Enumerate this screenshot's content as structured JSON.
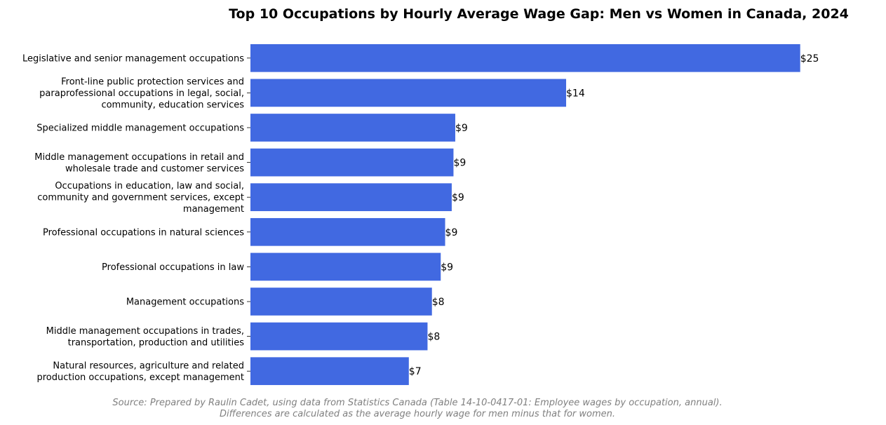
{
  "chart_data": {
    "type": "bar",
    "orientation": "horizontal",
    "title": "Top 10 Occupations by Hourly Average Wage Gap: Men vs Women in Canada, 2024",
    "xlabel": "",
    "ylabel": "",
    "xlim": [
      0,
      25
    ],
    "grid": false,
    "bar_color": "#4169E1",
    "value_prefix": "$",
    "categories": [
      [
        "Legislative and senior management occupations"
      ],
      [
        "Front-line public protection services and",
        "paraprofessional occupations in legal, social,",
        "community, education services"
      ],
      [
        "Specialized middle management occupations"
      ],
      [
        "Middle management occupations in retail and",
        "wholesale trade and customer services"
      ],
      [
        "Occupations in education, law and social,",
        "community and government services, except",
        "management"
      ],
      [
        "Professional occupations in natural sciences"
      ],
      [
        "Professional occupations in law"
      ],
      [
        "Management occupations"
      ],
      [
        "Middle management occupations in trades,",
        "transportation, production and utilities"
      ],
      [
        "Natural resources, agriculture and related",
        "production occupations, except management"
      ]
    ],
    "values": [
      24.99,
      14.35,
      9.31,
      9.23,
      9.15,
      8.85,
      8.65,
      8.25,
      8.05,
      7.2
    ],
    "data_labels": [
      "$25",
      "$14",
      "$9",
      "$9",
      "$9",
      "$9",
      "$9",
      "$8",
      "$8",
      "$7"
    ],
    "source_lines": [
      "Source: Prepared by Raulin Cadet, using data from Statistics Canada (Table 14-10-0417-01: Employee wages by occupation, annual).",
      "Differences are calculated as the average hourly wage for men minus that for women."
    ]
  }
}
